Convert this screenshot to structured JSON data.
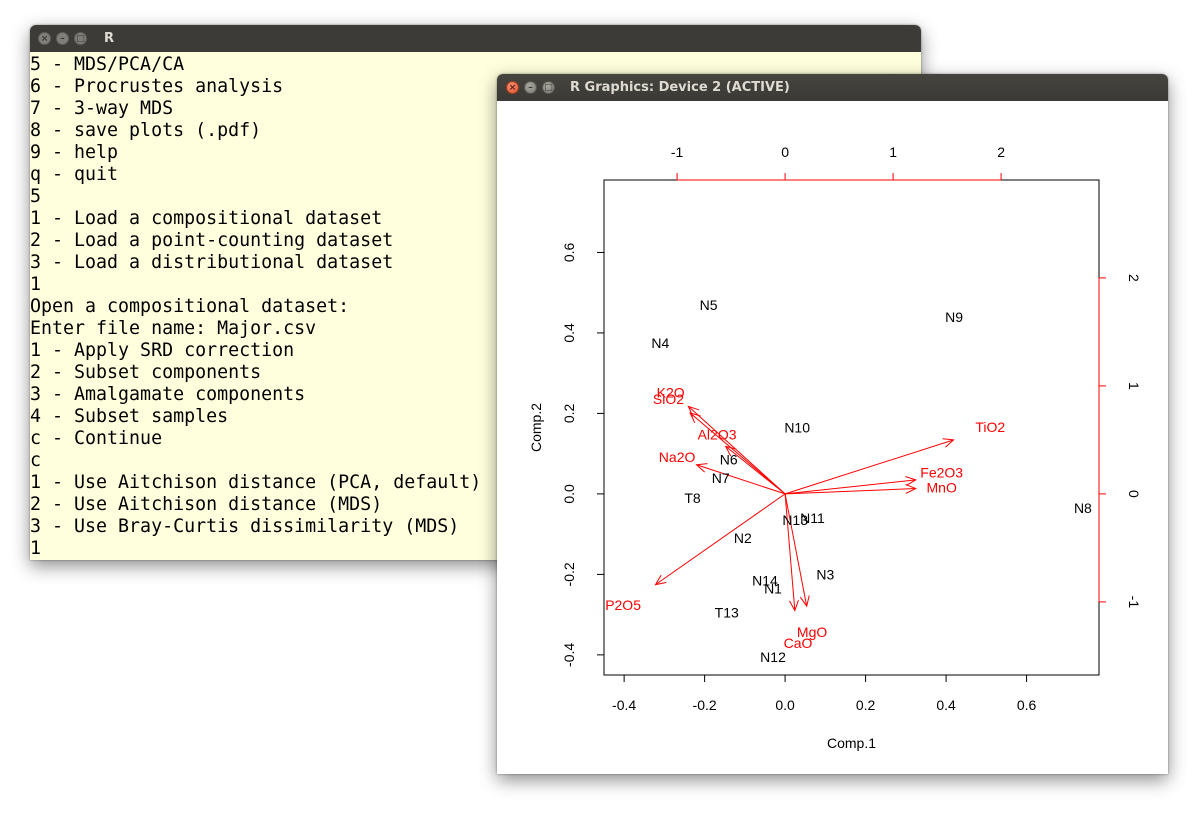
{
  "console_window": {
    "title": "R",
    "lines": [
      "5 - MDS/PCA/CA",
      "6 - Procrustes analysis",
      "7 - 3-way MDS",
      "8 - save plots (.pdf)",
      "9 - help",
      "q - quit",
      "5",
      "1 - Load a compositional dataset",
      "2 - Load a point-counting dataset",
      "3 - Load a distributional dataset",
      "1",
      "Open a compositional dataset:",
      "Enter file name: Major.csv",
      "1 - Apply SRD correction",
      "2 - Subset components",
      "3 - Amalgamate components",
      "4 - Subset samples",
      "c - Continue",
      "c",
      "1 - Use Aitchison distance (PCA, default)",
      "2 - Use Aitchison distance (MDS)",
      "3 - Use Bray-Curtis dissimilarity (MDS)",
      "1"
    ],
    "background_color": "#ffffdd"
  },
  "graphics_window": {
    "title": "R Graphics: Device 2 (ACTIVE)",
    "controls": {
      "close_icon": "close-icon",
      "minimize_icon": "minimize-icon",
      "maximize_icon": "maximize-icon"
    }
  },
  "chart_data": {
    "type": "scatter",
    "subtype": "biplot",
    "xlabel": "Comp.1",
    "ylabel": "Comp.2",
    "xlim": [
      -0.45,
      0.78
    ],
    "ylim": [
      -0.45,
      0.78
    ],
    "x_ticks": [
      -0.4,
      -0.2,
      0.0,
      0.2,
      0.4,
      0.6
    ],
    "x_tick_labels": [
      "-0.4",
      "-0.2",
      "0.0",
      "0.2",
      "0.4",
      "0.6"
    ],
    "y_ticks": [
      -0.4,
      -0.2,
      0.0,
      0.2,
      0.4,
      0.6
    ],
    "y_tick_labels": [
      "-0.4",
      "-0.2",
      "0.0",
      "0.2",
      "0.4",
      "0.6"
    ],
    "top_ticks": [
      -1,
      0,
      1,
      2
    ],
    "top_tick_labels": [
      "-1",
      "0",
      "1",
      "2"
    ],
    "right_ticks": [
      -1,
      0,
      1,
      2
    ],
    "right_tick_labels": [
      "-1",
      "0",
      "1",
      "2"
    ],
    "secondary_axis_color": "#ff0000",
    "points": [
      {
        "label": "N5",
        "x": -0.19,
        "y": 0.47
      },
      {
        "label": "N4",
        "x": -0.31,
        "y": 0.375
      },
      {
        "label": "N9",
        "x": 0.42,
        "y": 0.44
      },
      {
        "label": "N10",
        "x": 0.03,
        "y": 0.165
      },
      {
        "label": "N6",
        "x": -0.14,
        "y": 0.085
      },
      {
        "label": "N7",
        "x": -0.16,
        "y": 0.04
      },
      {
        "label": "T8",
        "x": -0.23,
        "y": -0.01
      },
      {
        "label": "N8",
        "x": 0.74,
        "y": -0.035
      },
      {
        "label": "N13",
        "x": 0.025,
        "y": -0.065
      },
      {
        "label": "N11",
        "x": 0.068,
        "y": -0.06
      },
      {
        "label": "N2",
        "x": -0.105,
        "y": -0.11
      },
      {
        "label": "N3",
        "x": 0.1,
        "y": -0.2
      },
      {
        "label": "N14",
        "x": -0.05,
        "y": -0.215
      },
      {
        "label": "N1",
        "x": -0.03,
        "y": -0.235
      },
      {
        "label": "T13",
        "x": -0.145,
        "y": -0.295
      },
      {
        "label": "N12",
        "x": -0.03,
        "y": -0.405
      }
    ],
    "loadings": [
      {
        "label": "K2O",
        "x": -0.895,
        "y": 0.81,
        "label_x": -1.06,
        "label_y": 0.94
      },
      {
        "label": "SiO2",
        "x": -0.88,
        "y": 0.75,
        "label_x": -1.08,
        "label_y": 0.88
      },
      {
        "label": "Al2O3",
        "x": -0.55,
        "y": 0.44,
        "label_x": -0.63,
        "label_y": 0.55
      },
      {
        "label": "Na2O",
        "x": -0.82,
        "y": 0.27,
        "label_x": -1.0,
        "label_y": 0.34
      },
      {
        "label": "TiO2",
        "x": 1.56,
        "y": 0.5,
        "label_x": 1.9,
        "label_y": 0.62
      },
      {
        "label": "Fe2O3",
        "x": 1.21,
        "y": 0.13,
        "label_x": 1.45,
        "label_y": 0.2
      },
      {
        "label": "MnO",
        "x": 1.21,
        "y": 0.05,
        "label_x": 1.45,
        "label_y": 0.06
      },
      {
        "label": "P2O5",
        "x": -1.2,
        "y": -0.84,
        "label_x": -1.5,
        "label_y": -1.03
      },
      {
        "label": "MgO",
        "x": 0.2,
        "y": -1.04,
        "label_x": 0.25,
        "label_y": -1.28
      },
      {
        "label": "CaO",
        "x": 0.09,
        "y": -1.08,
        "label_x": 0.12,
        "label_y": -1.38
      }
    ],
    "point_color": "#000000",
    "loading_color": "#ff0000"
  }
}
